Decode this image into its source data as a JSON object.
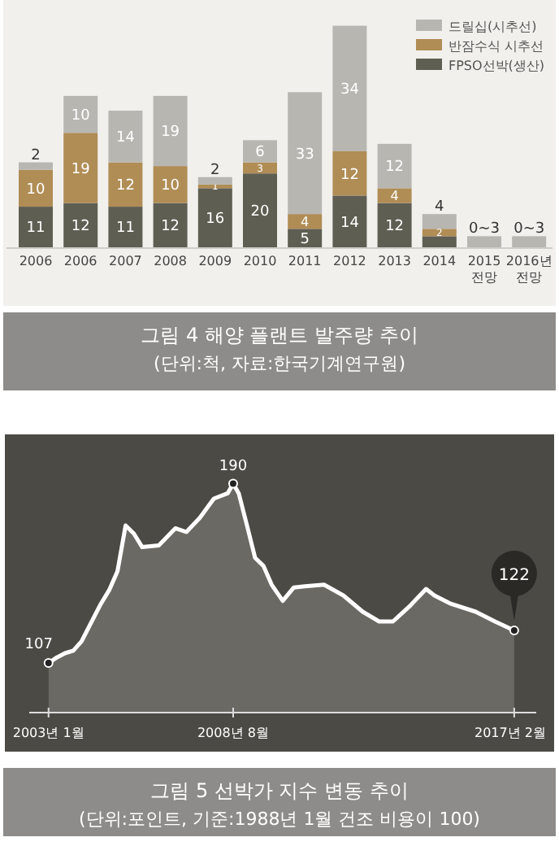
{
  "chart_data": [
    {
      "type": "bar",
      "stacked": true,
      "title": "그림 4 해양 플랜트 발주량 추이",
      "subtitle": "(단위:척, 자료:한국기계연구원)",
      "legend": "top right",
      "categories": [
        "2006",
        "2006",
        "2007",
        "2008",
        "2009",
        "2010",
        "2011",
        "2012",
        "2013",
        "2014",
        "2015 전망",
        "2016년 전망"
      ],
      "series": [
        {
          "name": "FPSO선박(생산)",
          "color": "#5f5e53",
          "values": [
            11,
            12,
            11,
            12,
            16,
            20,
            5,
            14,
            12,
            3,
            null,
            null
          ],
          "value_labels": [
            "11",
            "12",
            "11",
            "12",
            "16",
            "20",
            "5",
            "14",
            "12",
            null,
            null,
            null
          ]
        },
        {
          "name": "반잠수식 시추선",
          "color": "#b08d55",
          "values": [
            10,
            19,
            12,
            10,
            1,
            3,
            4,
            12,
            4,
            2,
            null,
            null
          ],
          "value_labels": [
            "10",
            "19",
            "12",
            "10",
            "1",
            "3",
            "4",
            "12",
            "4",
            "2",
            null,
            null
          ]
        },
        {
          "name": "드릴십(시추선)",
          "color": "#b8b6b1",
          "values": [
            2,
            10,
            14,
            19,
            2,
            6,
            33,
            34,
            12,
            4,
            3,
            3
          ],
          "value_labels": [
            "2",
            "10",
            "14",
            "19",
            "2",
            "6",
            "33",
            "34",
            "12",
            "4",
            "0~3",
            "0~3"
          ]
        }
      ]
    },
    {
      "type": "area",
      "title": "그림 5 선박가 지수 변동 추이",
      "subtitle": "(단위:포인트, 기준:1988년 1월 건조 비용이 100)",
      "tick_labels": "x",
      "xlim": [
        "2002-06",
        "2017-10"
      ],
      "ylim": [
        84,
        212
      ],
      "xticks": [
        {
          "value": "2003-01",
          "label": "2003년 1월"
        },
        {
          "value": "2008-08",
          "label": "2008년 8월"
        },
        {
          "value": "2017-02",
          "label": "2017년 2월"
        }
      ],
      "series": [
        {
          "color": "#ffffff",
          "x": [
            "2003-01",
            "2003-04",
            "2003-07",
            "2003-10",
            "2004-01",
            "2004-05",
            "2004-08",
            "2004-11",
            "2005-02",
            "2005-05",
            "2005-08",
            "2005-11",
            "2006-05",
            "2006-11",
            "2007-03",
            "2007-08",
            "2008-01",
            "2008-06",
            "2008-08",
            "2008-10",
            "2009-01",
            "2009-04",
            "2009-07",
            "2009-10",
            "2010-02",
            "2010-06",
            "2010-10",
            "2011-05",
            "2011-12",
            "2012-07",
            "2013-01",
            "2013-06",
            "2013-12",
            "2014-06",
            "2014-09",
            "2015-03",
            "2015-12",
            "2016-07",
            "2017-02"
          ],
          "values": [
            107,
            109.5,
            111.5,
            112.7,
            117,
            127,
            134.4,
            140.7,
            149.4,
            170.6,
            166.8,
            160.6,
            161.4,
            169.3,
            167.6,
            174.3,
            183,
            185.5,
            190,
            185.5,
            170.6,
            155.6,
            151.9,
            143.2,
            135.7,
            141.9,
            142.4,
            143.2,
            138.2,
            130.7,
            126.2,
            126.2,
            133.2,
            141.2,
            138.2,
            134.4,
            130.7,
            126.2,
            122
          ],
          "value_labels": [
            "107",
            null,
            null,
            null,
            null,
            null,
            null,
            null,
            null,
            null,
            null,
            null,
            null,
            null,
            null,
            null,
            null,
            null,
            "190",
            null,
            null,
            null,
            null,
            null,
            null,
            null,
            null,
            null,
            null,
            null,
            null,
            null,
            null,
            null,
            null,
            null,
            null,
            null,
            "122"
          ]
        }
      ]
    }
  ]
}
